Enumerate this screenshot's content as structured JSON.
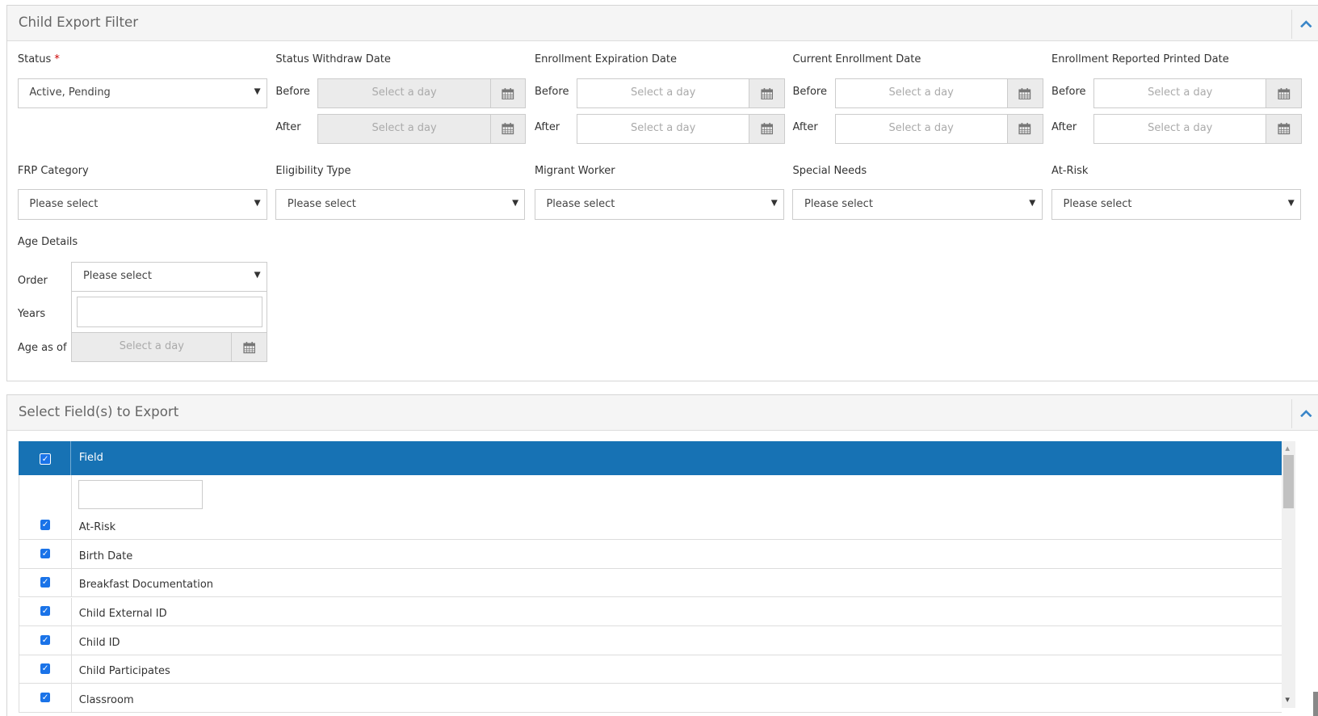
{
  "filter_panel": {
    "title": "Child Export Filter",
    "status": {
      "label": "Status",
      "required_mark": "*",
      "value": "Active, Pending"
    },
    "date_groups": [
      {
        "label": "Status Withdraw Date",
        "disabled": true,
        "before_label": "Before",
        "after_label": "After",
        "before_placeholder": "Select a day",
        "after_placeholder": "Select a day"
      },
      {
        "label": "Enrollment Expiration Date",
        "disabled": false,
        "before_label": "Before",
        "after_label": "After",
        "before_placeholder": "Select a day",
        "after_placeholder": "Select a day"
      },
      {
        "label": "Current Enrollment Date",
        "disabled": false,
        "before_label": "Before",
        "after_label": "After",
        "before_placeholder": "Select a day",
        "after_placeholder": "Select a day"
      },
      {
        "label": "Enrollment Reported Printed Date",
        "disabled": false,
        "before_label": "Before",
        "after_label": "After",
        "before_placeholder": "Select a day",
        "after_placeholder": "Select a day"
      }
    ],
    "selects": [
      {
        "label": "FRP Category",
        "value": "Please select"
      },
      {
        "label": "Eligibility Type",
        "value": "Please select"
      },
      {
        "label": "Migrant Worker",
        "value": "Please select"
      },
      {
        "label": "Special Needs",
        "value": "Please select"
      },
      {
        "label": "At-Risk",
        "value": "Please select"
      }
    ],
    "age_details": {
      "label": "Age Details",
      "order_label": "Order",
      "order_value": "Please select",
      "years_label": "Years",
      "years_value": "",
      "age_as_of_label": "Age as of",
      "age_as_of_placeholder": "Select a day"
    }
  },
  "fields_panel": {
    "title": "Select Field(s) to Export",
    "column_header": "Field",
    "select_all_checked": true,
    "filter_value": "",
    "rows": [
      {
        "label": "At-Risk",
        "checked": true
      },
      {
        "label": "Birth Date",
        "checked": true
      },
      {
        "label": "Breakfast Documentation",
        "checked": true
      },
      {
        "label": "Child External ID",
        "checked": true
      },
      {
        "label": "Child ID",
        "checked": true
      },
      {
        "label": "Child Participates",
        "checked": true
      },
      {
        "label": "Classroom",
        "checked": true
      }
    ]
  },
  "colors": {
    "accent": "#1772b4",
    "checkbox": "#1a73e8",
    "header_bg": "#f5f5f5",
    "disabled_bg": "#ebebeb"
  }
}
